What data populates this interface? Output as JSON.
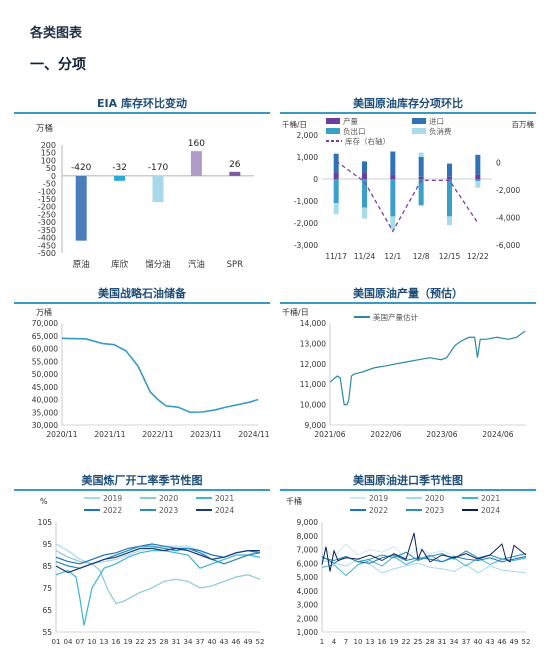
{
  "page": {
    "title": "各类图表",
    "section": "一、分项"
  },
  "chart_data": [
    {
      "id": "eia",
      "type": "bar",
      "title": "EIA 库存环比变动",
      "ylabel": "万桶",
      "ylim": [
        -500,
        200
      ],
      "yticks": [
        200,
        150,
        100,
        50,
        0,
        -50,
        -100,
        -150,
        -200,
        -250,
        -300,
        -350,
        -400,
        -450,
        -500
      ],
      "categories": [
        "原油",
        "库欣",
        "馏分油",
        "汽油",
        "SPR"
      ],
      "values": [
        -420,
        -32,
        -170,
        160,
        26
      ],
      "labels": [
        "-420",
        "-32",
        "-170",
        "160",
        "26"
      ],
      "colors": [
        "#4a7ebb",
        "#2aa9d6",
        "#a9d8ea",
        "#b19cc7",
        "#7a5aa6"
      ]
    },
    {
      "id": "components",
      "type": "bar",
      "title": "美国原油库存分项环比",
      "ylabel_left": "千桶/日",
      "ylabel_right": "百万桶",
      "ylim_left": [
        -3000,
        2000
      ],
      "ylim_right": [
        -6000,
        2000
      ],
      "yticks_left": [
        "2,000",
        "1,000",
        "0",
        "-1,000",
        "-2,000",
        "-3,000"
      ],
      "yticks_left_values": [
        2000,
        1000,
        0,
        -1000,
        -2000,
        -3000
      ],
      "yticks_right": [
        "0",
        "-2,000",
        "-4,000",
        "-6,000"
      ],
      "yticks_right_values": [
        0,
        -2000,
        -4000,
        -6000
      ],
      "categories": [
        "11/17",
        "11/24",
        "12/1",
        "12/8",
        "12/15",
        "12/22"
      ],
      "legend": [
        "产量",
        "进口",
        "负出口",
        "负消费",
        "库存（右轴）"
      ],
      "series": [
        {
          "name": "产量",
          "color": "#6b3fa0",
          "values": [
            300,
            300,
            200,
            100,
            100,
            200
          ]
        },
        {
          "name": "进口",
          "color": "#2f73b6",
          "values": [
            850,
            500,
            1050,
            900,
            600,
            900
          ]
        },
        {
          "name": "负出口",
          "color": "#3aa0c8",
          "values": [
            -1100,
            -1300,
            -1700,
            -1200,
            -1700,
            -100
          ]
        },
        {
          "name": "负消费",
          "color": "#a7dceb",
          "values": [
            -500,
            -500,
            -600,
            200,
            -400,
            -300
          ]
        }
      ],
      "stock": {
        "name": "库存（右轴）",
        "color": "#7b3fa3",
        "values": [
          100,
          -1400,
          -5000,
          -1300,
          -1300,
          -4400
        ]
      }
    },
    {
      "id": "spr",
      "type": "line",
      "title": "美国战略石油储备",
      "ylabel": "万桶",
      "ylim": [
        30000,
        70000
      ],
      "yticks": [
        "70,000",
        "65,000",
        "60,000",
        "55,000",
        "50,000",
        "45,000",
        "40,000",
        "35,000",
        "30,000"
      ],
      "ytick_values": [
        70000,
        65000,
        60000,
        55000,
        50000,
        45000,
        40000,
        35000,
        30000
      ],
      "xlim": [
        2020.833,
        2024.917
      ],
      "xticks": [
        "2020/11",
        "2021/11",
        "2022/11",
        "2023/11",
        "2024/11"
      ],
      "xtick_values": [
        2020.833,
        2021.833,
        2022.833,
        2023.833,
        2024.833
      ],
      "color": "#3a9bbf",
      "x": [
        2020.83,
        2021.0,
        2021.33,
        2021.67,
        2021.92,
        2022.17,
        2022.42,
        2022.67,
        2022.83,
        2023.0,
        2023.25,
        2023.5,
        2023.75,
        2024.0,
        2024.25,
        2024.5,
        2024.75,
        2024.92
      ],
      "y": [
        64000,
        63900,
        63800,
        62000,
        61500,
        59000,
        53000,
        43000,
        40000,
        37500,
        37000,
        35000,
        35100,
        35800,
        37000,
        38000,
        39000,
        40000
      ]
    },
    {
      "id": "production",
      "type": "line",
      "title": "美国原油产量（预估）",
      "ylabel": "千桶/日",
      "legend": [
        "美国产量估计"
      ],
      "ylim": [
        9000,
        14000
      ],
      "yticks": [
        "14,000",
        "13,000",
        "12,000",
        "11,000",
        "10,000",
        "9,000"
      ],
      "ytick_values": [
        14000,
        13000,
        12000,
        11000,
        10000,
        9000
      ],
      "xlim": [
        2021.417,
        2024.917
      ],
      "xticks": [
        "2021/06",
        "2022/06",
        "2023/06",
        "2024/06"
      ],
      "xtick_values": [
        2021.417,
        2022.417,
        2023.417,
        2024.417
      ],
      "color": "#2a8aa0",
      "x": [
        2021.42,
        2021.5,
        2021.55,
        2021.6,
        2021.67,
        2021.72,
        2021.75,
        2021.8,
        2021.85,
        2022.0,
        2022.2,
        2022.42,
        2022.6,
        2022.8,
        2023.0,
        2023.2,
        2023.4,
        2023.5,
        2023.65,
        2023.75,
        2023.9,
        2024.0,
        2024.05,
        2024.1,
        2024.2,
        2024.4,
        2024.6,
        2024.75,
        2024.85,
        2024.9
      ],
      "y": [
        11100,
        11300,
        11400,
        11300,
        10000,
        10000,
        10200,
        11400,
        11500,
        11600,
        11800,
        11900,
        12000,
        12100,
        12200,
        12300,
        12200,
        12300,
        12900,
        13100,
        13300,
        13300,
        12300,
        13200,
        13200,
        13300,
        13200,
        13300,
        13500,
        13600
      ]
    },
    {
      "id": "refinery",
      "type": "line",
      "title": "美国炼厂开工率季节性图",
      "ylabel": "%",
      "ylim": [
        55,
        105
      ],
      "yticks": [
        "105",
        "95",
        "85",
        "75",
        "65",
        "55"
      ],
      "ytick_values": [
        105,
        95,
        85,
        75,
        65,
        55
      ],
      "xlim": [
        1,
        52
      ],
      "xticks": [
        "01",
        "04",
        "07",
        "10",
        "13",
        "16",
        "19",
        "22",
        "25",
        "28",
        "31",
        "34",
        "37",
        "40",
        "43",
        "46",
        "49",
        "52"
      ],
      "xtick_values": [
        1,
        4,
        7,
        10,
        13,
        16,
        19,
        22,
        25,
        28,
        31,
        34,
        37,
        40,
        43,
        46,
        49,
        52
      ],
      "legend": [
        "2019",
        "2020",
        "2021",
        "2022",
        "2023",
        "2024"
      ],
      "series": [
        {
          "name": "2019",
          "color": "#a9d8ea",
          "x": [
            1,
            4,
            7,
            10,
            13,
            16,
            19,
            22,
            25,
            28,
            31,
            34,
            37,
            40,
            43,
            46,
            49,
            52
          ],
          "y": [
            95,
            92,
            88,
            86,
            87,
            88,
            90,
            92,
            93,
            94,
            94,
            94,
            92,
            88,
            86,
            88,
            90,
            92
          ]
        },
        {
          "name": "2020",
          "color": "#8dc9d4",
          "x": [
            1,
            4,
            7,
            10,
            12,
            14,
            16,
            18,
            20,
            22,
            25,
            28,
            31,
            34,
            37,
            40,
            43,
            46,
            49,
            52
          ],
          "y": [
            92,
            89,
            87,
            86,
            83,
            74,
            68,
            69,
            71,
            73,
            75,
            78,
            79,
            78,
            75,
            76,
            78,
            80,
            81,
            79
          ]
        },
        {
          "name": "2021",
          "color": "#3fb3d0",
          "x": [
            1,
            4,
            6,
            7,
            8,
            10,
            13,
            16,
            19,
            22,
            25,
            28,
            31,
            34,
            37,
            40,
            43,
            46,
            49,
            52
          ],
          "y": [
            81,
            83,
            80,
            70,
            58,
            75,
            84,
            86,
            89,
            91,
            92,
            92,
            91,
            90,
            84,
            86,
            88,
            90,
            90,
            89
          ]
        },
        {
          "name": "2022",
          "color": "#1e73be",
          "x": [
            1,
            4,
            7,
            10,
            13,
            16,
            19,
            22,
            25,
            28,
            31,
            34,
            37,
            40,
            43,
            46,
            49,
            52
          ],
          "y": [
            89,
            87,
            86,
            88,
            90,
            91,
            93,
            94,
            95,
            94,
            93,
            93,
            92,
            90,
            89,
            91,
            92,
            91
          ]
        },
        {
          "name": "2023",
          "color": "#2b8fb0",
          "x": [
            1,
            4,
            7,
            10,
            13,
            16,
            19,
            22,
            25,
            28,
            31,
            34,
            37,
            40,
            43,
            46,
            49,
            52
          ],
          "y": [
            87,
            85,
            84,
            86,
            88,
            90,
            92,
            94,
            94,
            93,
            92,
            93,
            91,
            88,
            86,
            88,
            90,
            91
          ]
        },
        {
          "name": "2024",
          "color": "#1c3a78",
          "x": [
            1,
            4,
            7,
            10,
            13,
            16,
            19,
            22,
            25,
            28,
            31,
            34,
            37,
            40,
            43,
            46,
            49,
            52
          ],
          "y": [
            85,
            82,
            84,
            86,
            88,
            89,
            91,
            93,
            93,
            92,
            93,
            92,
            90,
            88,
            89,
            91,
            92,
            92
          ]
        }
      ]
    },
    {
      "id": "imports",
      "type": "line",
      "title": "美国原油进口季节性图",
      "ylabel": "千桶",
      "ylim": [
        1000,
        9000
      ],
      "yticks": [
        "9,000",
        "8,000",
        "7,000",
        "6,000",
        "5,000",
        "4,000",
        "3,000",
        "2,000",
        "1,000"
      ],
      "ytick_values": [
        9000,
        8000,
        7000,
        6000,
        5000,
        4000,
        3000,
        2000,
        1000
      ],
      "xlim": [
        1,
        52
      ],
      "xticks": [
        "1",
        "4",
        "7",
        "10",
        "13",
        "16",
        "19",
        "22",
        "25",
        "28",
        "31",
        "34",
        "37",
        "40",
        "43",
        "46",
        "49",
        "52"
      ],
      "xtick_values": [
        1,
        4,
        7,
        10,
        13,
        16,
        19,
        22,
        25,
        28,
        31,
        34,
        37,
        40,
        43,
        46,
        49,
        52
      ],
      "legend": [
        "2019",
        "2020",
        "2021",
        "2022",
        "2023",
        "2024"
      ],
      "series": [
        {
          "name": "2019",
          "color": "#d0e8ef",
          "x": [
            1,
            4,
            7,
            10,
            13,
            16,
            19,
            22,
            25,
            28,
            31,
            34,
            37,
            40,
            43,
            46,
            49,
            52
          ],
          "y": [
            7200,
            6500,
            7400,
            6600,
            7000,
            6800,
            7200,
            6400,
            7100,
            6700,
            6900,
            6500,
            6800,
            6400,
            6600,
            6200,
            6500,
            6300
          ]
        },
        {
          "name": "2020",
          "color": "#a9d8ea",
          "x": [
            1,
            4,
            7,
            10,
            13,
            16,
            19,
            22,
            25,
            28,
            31,
            34,
            37,
            40,
            43,
            46,
            49,
            52
          ],
          "y": [
            6200,
            6000,
            5800,
            6300,
            5900,
            5300,
            5600,
            5800,
            6000,
            5700,
            5600,
            5400,
            5900,
            5300,
            5800,
            5500,
            5400,
            5300
          ]
        },
        {
          "name": "2021",
          "color": "#3fb3d0",
          "x": [
            1,
            4,
            7,
            10,
            13,
            16,
            19,
            22,
            25,
            28,
            31,
            34,
            37,
            40,
            43,
            46,
            49,
            52
          ],
          "y": [
            5700,
            5900,
            5100,
            5900,
            6200,
            5800,
            6500,
            5900,
            6300,
            6600,
            6100,
            6400,
            5800,
            6400,
            5900,
            6300,
            6200,
            6400
          ]
        },
        {
          "name": "2022",
          "color": "#1e73be",
          "x": [
            1,
            4,
            7,
            10,
            13,
            16,
            19,
            22,
            25,
            28,
            31,
            34,
            37,
            40,
            43,
            46,
            49,
            52
          ],
          "y": [
            6500,
            6000,
            6500,
            6100,
            6000,
            6400,
            6600,
            6200,
            6400,
            6300,
            6100,
            6500,
            6300,
            6200,
            6400,
            6100,
            6300,
            6500
          ]
        },
        {
          "name": "2023",
          "color": "#2b8fb0",
          "x": [
            1,
            4,
            7,
            10,
            13,
            16,
            19,
            22,
            25,
            28,
            31,
            34,
            37,
            40,
            43,
            46,
            49,
            52
          ],
          "y": [
            6400,
            6200,
            6500,
            6100,
            6300,
            6600,
            6400,
            6800,
            6200,
            6500,
            6700,
            6300,
            6900,
            6400,
            6600,
            6300,
            6500,
            6700
          ]
        },
        {
          "name": "2024",
          "color": "#0d1f5c",
          "x": [
            1,
            2,
            3,
            4,
            5,
            7,
            10,
            13,
            16,
            19,
            22,
            24,
            25,
            26,
            28,
            31,
            34,
            37,
            40,
            43,
            46,
            47,
            48,
            49,
            52
          ],
          "y": [
            5900,
            7200,
            5400,
            6900,
            6200,
            6400,
            6300,
            6600,
            6200,
            6700,
            6300,
            8200,
            6300,
            7000,
            6100,
            6600,
            6400,
            6700,
            6300,
            6600,
            7400,
            6300,
            6100,
            7300,
            6600
          ]
        }
      ]
    }
  ]
}
